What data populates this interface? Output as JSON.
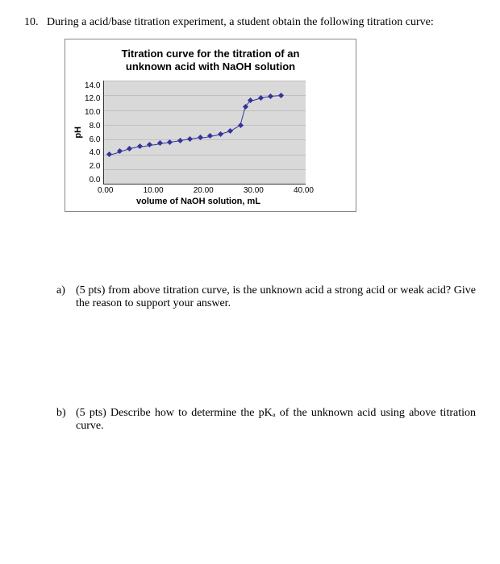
{
  "question_number": "10.",
  "question_text": "During a acid/base titration experiment, a student obtain the following titration curve:",
  "chart": {
    "type": "line",
    "title_line1": "Titration curve for the titration of an",
    "title_line2": "unknown acid with NaOH solution",
    "xlabel": "volume of NaOH solution, mL",
    "ylabel": "pH",
    "xlim": [
      0,
      40
    ],
    "ylim": [
      0,
      14
    ],
    "xticks": [
      "0.00",
      "10.00",
      "20.00",
      "30.00",
      "40.00"
    ],
    "yticks": [
      "14.0",
      "12.0",
      "10.0",
      "8.0",
      "6.0",
      "4.0",
      "2.0",
      "0.0"
    ],
    "ytick_step": 2,
    "background_color": "#d9d9d9",
    "grid_color": "#bfbfbf",
    "line_color": "#333399",
    "marker_color": "#333399",
    "marker_style": "diamond",
    "marker_size": 5,
    "data": [
      {
        "x": 1,
        "y": 4.0
      },
      {
        "x": 3,
        "y": 4.4
      },
      {
        "x": 5,
        "y": 4.8
      },
      {
        "x": 7,
        "y": 5.1
      },
      {
        "x": 9,
        "y": 5.3
      },
      {
        "x": 11,
        "y": 5.5
      },
      {
        "x": 13,
        "y": 5.7
      },
      {
        "x": 15,
        "y": 5.9
      },
      {
        "x": 17,
        "y": 6.1
      },
      {
        "x": 19,
        "y": 6.3
      },
      {
        "x": 21,
        "y": 6.5
      },
      {
        "x": 23,
        "y": 6.8
      },
      {
        "x": 25,
        "y": 7.2
      },
      {
        "x": 27,
        "y": 8.0
      },
      {
        "x": 28,
        "y": 10.5
      },
      {
        "x": 29,
        "y": 11.3
      },
      {
        "x": 31,
        "y": 11.7
      },
      {
        "x": 33,
        "y": 11.9
      },
      {
        "x": 35,
        "y": 12.0
      }
    ]
  },
  "parts": {
    "a": {
      "label": "a)",
      "text": "(5 pts) from above titration curve, is the unknown acid a strong acid or weak acid? Give the reason to support your answer."
    },
    "b": {
      "label": "b)",
      "text": "(5 pts) Describe how to determine the pKₐ of the unknown acid using above titration curve."
    }
  }
}
